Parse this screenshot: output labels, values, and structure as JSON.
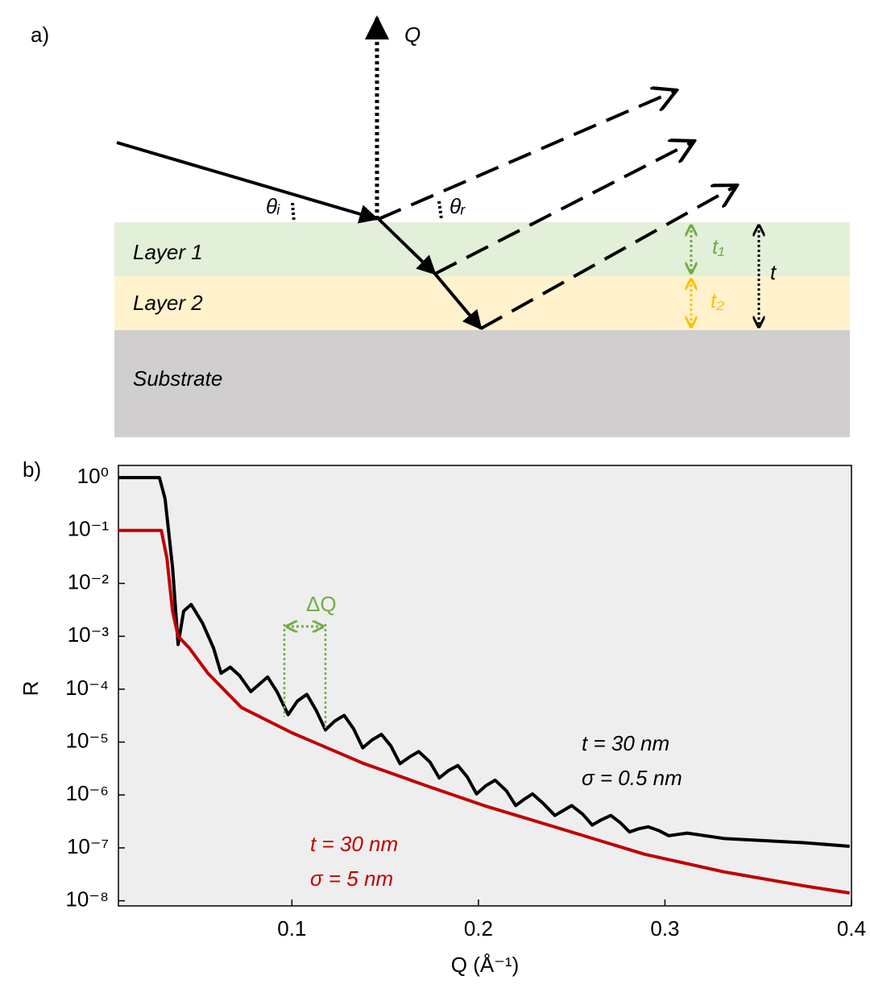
{
  "panel_a": {
    "label": "a)",
    "q_label": "Q",
    "theta_i": "θᵢ",
    "theta_r": "θᵣ",
    "layers": [
      "Layer 1",
      "Layer 2",
      "Substrate"
    ],
    "t1": "t₁",
    "t2": "t₂",
    "t": "t"
  },
  "chart_data": {
    "type": "line",
    "panel_label": "b)",
    "xlabel": "Q (Å⁻¹)",
    "ylabel": "R",
    "yscale": "log",
    "xlim": [
      0.007,
      0.4
    ],
    "ylim": [
      8e-09,
      1.7
    ],
    "xticks": [
      0.1,
      0.2,
      0.3,
      0.4
    ],
    "yticks": [
      {
        "value": 1,
        "label": "10⁰"
      },
      {
        "value": 0.1,
        "label": "10⁻¹"
      },
      {
        "value": 0.01,
        "label": "10⁻²"
      },
      {
        "value": 0.001,
        "label": "10⁻³"
      },
      {
        "value": 0.0001,
        "label": "10⁻⁴"
      },
      {
        "value": 1e-05,
        "label": "10⁻⁵"
      },
      {
        "value": 1e-06,
        "label": "10⁻⁶"
      },
      {
        "value": 1e-07,
        "label": "10⁻⁷"
      },
      {
        "value": 1e-08,
        "label": "10⁻⁸"
      }
    ],
    "series": [
      {
        "color": "#000000",
        "x": [
          0.007,
          0.029,
          0.032,
          0.036,
          0.039,
          0.042,
          0.046,
          0.052,
          0.058,
          0.062,
          0.067,
          0.072,
          0.078,
          0.082,
          0.087,
          0.092,
          0.098,
          0.103,
          0.108,
          0.113,
          0.118,
          0.123,
          0.128,
          0.133,
          0.138,
          0.143,
          0.148,
          0.153,
          0.158,
          0.163,
          0.168,
          0.174,
          0.179,
          0.184,
          0.189,
          0.194,
          0.199,
          0.204,
          0.209,
          0.215,
          0.22,
          0.225,
          0.229,
          0.235,
          0.241,
          0.246,
          0.25,
          0.256,
          0.261,
          0.266,
          0.271,
          0.276,
          0.281,
          0.286,
          0.291,
          0.297,
          0.302,
          0.307,
          0.312,
          0.332,
          0.375,
          0.399
        ],
        "values": [
          1,
          1,
          0.4,
          0.02,
          0.0007,
          0.003,
          0.004,
          0.0018,
          0.0006,
          0.0002,
          0.00026,
          0.00018,
          9e-05,
          0.00012,
          0.00017,
          9e-05,
          3.3e-05,
          6e-05,
          8e-05,
          4e-05,
          1.7e-05,
          2.5e-05,
          3.2e-05,
          1.8e-05,
          7.8e-06,
          1.1e-05,
          1.4e-05,
          8.5e-06,
          3.9e-06,
          5.2e-06,
          6.6e-06,
          4.2e-06,
          2.1e-06,
          2.9e-06,
          3.6e-06,
          2.2e-06,
          1.05e-06,
          1.5e-06,
          1.9e-06,
          1.2e-06,
          6.3e-07,
          8.5e-07,
          1.05e-06,
          6.8e-07,
          4.1e-07,
          5.2e-07,
          6.3e-07,
          4.3e-07,
          2.7e-07,
          3.4e-07,
          4.1e-07,
          3e-07,
          2e-07,
          2.3e-07,
          2.5e-07,
          2.1e-07,
          1.7e-07,
          1.8e-07,
          1.9e-07,
          1.5e-07,
          1.25e-07,
          1.07e-07
        ]
      },
      {
        "color": "#c00000",
        "x": [
          0.007,
          0.03,
          0.033,
          0.036,
          0.039,
          0.045,
          0.055,
          0.073,
          0.1,
          0.138,
          0.172,
          0.203,
          0.246,
          0.289,
          0.332,
          0.375,
          0.399
        ],
        "values": [
          0.1,
          0.1,
          0.03,
          0.003,
          0.001,
          0.0006,
          0.0002,
          4.5e-05,
          1.5e-05,
          4e-06,
          1.5e-06,
          6.3e-07,
          2.2e-07,
          7.6e-08,
          3.5e-08,
          1.9e-08,
          1.4e-08
        ]
      }
    ],
    "annotations": [
      {
        "text": "t = 30 nm",
        "color": "#000000"
      },
      {
        "text": "σ = 0.5 nm",
        "color": "#000000"
      },
      {
        "text": "t = 30 nm",
        "color": "#c00000"
      },
      {
        "text": "σ = 5 nm",
        "color": "#c00000"
      },
      {
        "text": "ΔQ",
        "color": "#70ad47"
      }
    ]
  }
}
